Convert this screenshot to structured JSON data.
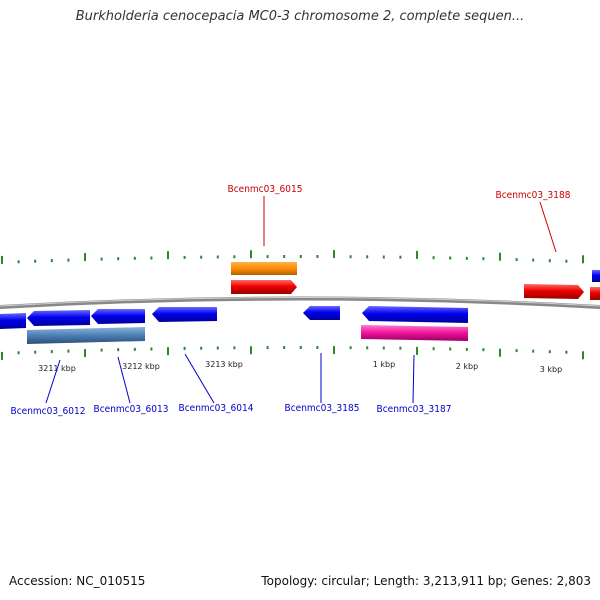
{
  "title": "Burkholderia cenocepacia MC0-3 chromosome 2, complete sequen...",
  "footer": {
    "accession": "Accession: NC_010515",
    "summary": "Topology: circular; Length: 3,213,911 bp; Genes: 2,803"
  },
  "tick_labels": [
    "3211 kbp",
    "3212 kbp",
    "3213 kbp",
    "1 kbp",
    "2 kbp",
    "3 kbp"
  ],
  "genes_top": [
    "Bcenmc03_6015",
    "Bcenmc03_3188"
  ],
  "genes_bottom": [
    "Bcenmc03_6012",
    "Bcenmc03_6013",
    "Bcenmc03_6014",
    "Bcenmc03_3185",
    "Bcenmc03_3187"
  ],
  "colors": {
    "forward": "#ee0000",
    "reverse": "#0000ee",
    "orange": "#ff8c00",
    "steel": "#4a7fb5",
    "pink": "#ee1199",
    "tick": "#2a8a2a",
    "backbone": "#888888"
  }
}
